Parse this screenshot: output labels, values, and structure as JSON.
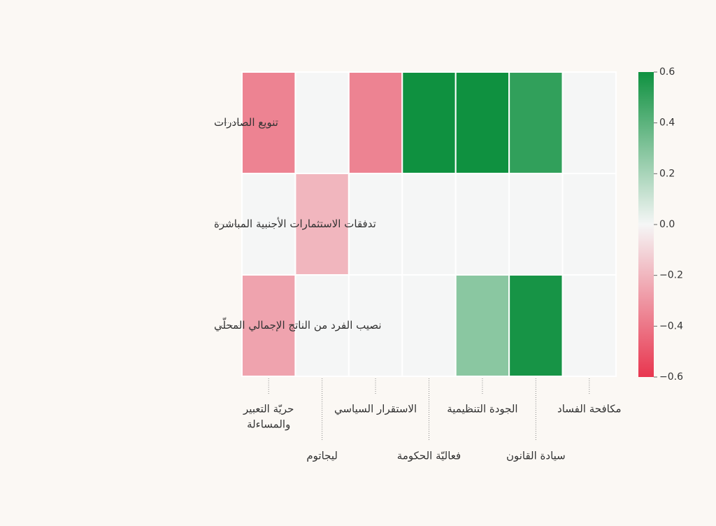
{
  "chart_data": {
    "type": "heatmap",
    "rows": [
      "تنويع الصادرات",
      "تدفقات الاستثمارات الأجنبية المباشرة",
      "نصيب الفرد من الناتج الإجمالي المحلّي"
    ],
    "columns": [
      [
        "حريّة التعبير",
        "والمساءلة"
      ],
      [
        "ليجاتوم"
      ],
      [
        "الاستقرار السياسي"
      ],
      [
        "فعاليّة الحكومة"
      ],
      [
        "الجودة التنظيمية"
      ],
      [
        "سيادة القانون"
      ],
      [
        "مكافحة الفساد"
      ]
    ],
    "values": [
      [
        -0.36,
        0.0,
        -0.36,
        0.63,
        0.62,
        0.51,
        0.0
      ],
      [
        0.0,
        -0.2,
        0.0,
        0.0,
        0.0,
        0.0,
        0.0
      ],
      [
        -0.26,
        0.0,
        0.0,
        0.0,
        0.28,
        0.58,
        0.0
      ]
    ],
    "colorscale": {
      "min": -0.6,
      "max": 0.6,
      "negative_color": "#e8364f",
      "zero_color": "#f5f6f6",
      "positive_color": "#0f9140"
    },
    "colorbar_ticks": [
      "0.6",
      "0.4",
      "0.2",
      "0.0",
      "−0.2",
      "−0.4",
      "−0.6"
    ],
    "grid": false
  }
}
